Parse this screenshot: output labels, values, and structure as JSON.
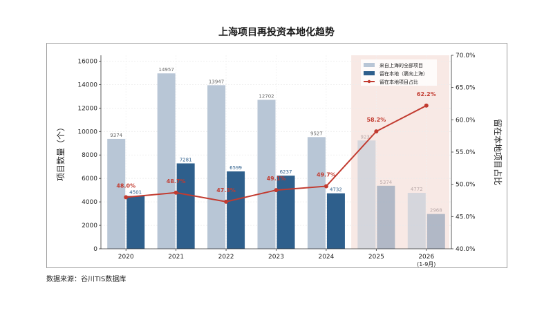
{
  "title": "上海项目再投资本地化趋势",
  "source": "数据来源：谷川TIS数据库",
  "chart_data": {
    "type": "bar",
    "categories": [
      "2020",
      "2021",
      "2022",
      "2023",
      "2024",
      "2025",
      "2026"
    ],
    "category_sublabels": [
      "",
      "",
      "",
      "",
      "",
      "",
      "(1-9月)"
    ],
    "forecast_categories": [
      "2025",
      "2026"
    ],
    "series": [
      {
        "name": "来自上海的全部项目",
        "type": "bar",
        "axis": "left",
        "color": "#b8c6d6",
        "values": [
          9374,
          14957,
          13947,
          12702,
          9527,
          9237,
          4772
        ]
      },
      {
        "name": "留在本地（裹向上海）",
        "type": "bar",
        "axis": "left",
        "color": "#2e5f8c",
        "values": [
          4501,
          7281,
          6599,
          6237,
          4732,
          5374,
          2968
        ]
      },
      {
        "name": "留在本地项目占比",
        "type": "line",
        "axis": "right",
        "color": "#c23b30",
        "values": [
          48.0,
          48.7,
          47.3,
          49.1,
          49.7,
          58.2,
          62.2
        ],
        "labels": [
          "48.0%",
          "48.7%",
          "47.3%",
          "49.1%",
          "49.7%",
          "58.2%",
          "62.2%"
        ]
      }
    ],
    "ylabel": "项目数量（个）",
    "ylabel_right": "留在本地项目占比",
    "ylim": [
      0,
      16500
    ],
    "yticks": [
      0,
      2000,
      4000,
      6000,
      8000,
      10000,
      12000,
      14000,
      16000
    ],
    "ylim_right": [
      40,
      70
    ],
    "yticks_right": [
      "40.0%",
      "45.0%",
      "50.0%",
      "55.0%",
      "60.0%",
      "65.0%",
      "70.0%"
    ],
    "legend_position": "top-right",
    "grid": true
  }
}
